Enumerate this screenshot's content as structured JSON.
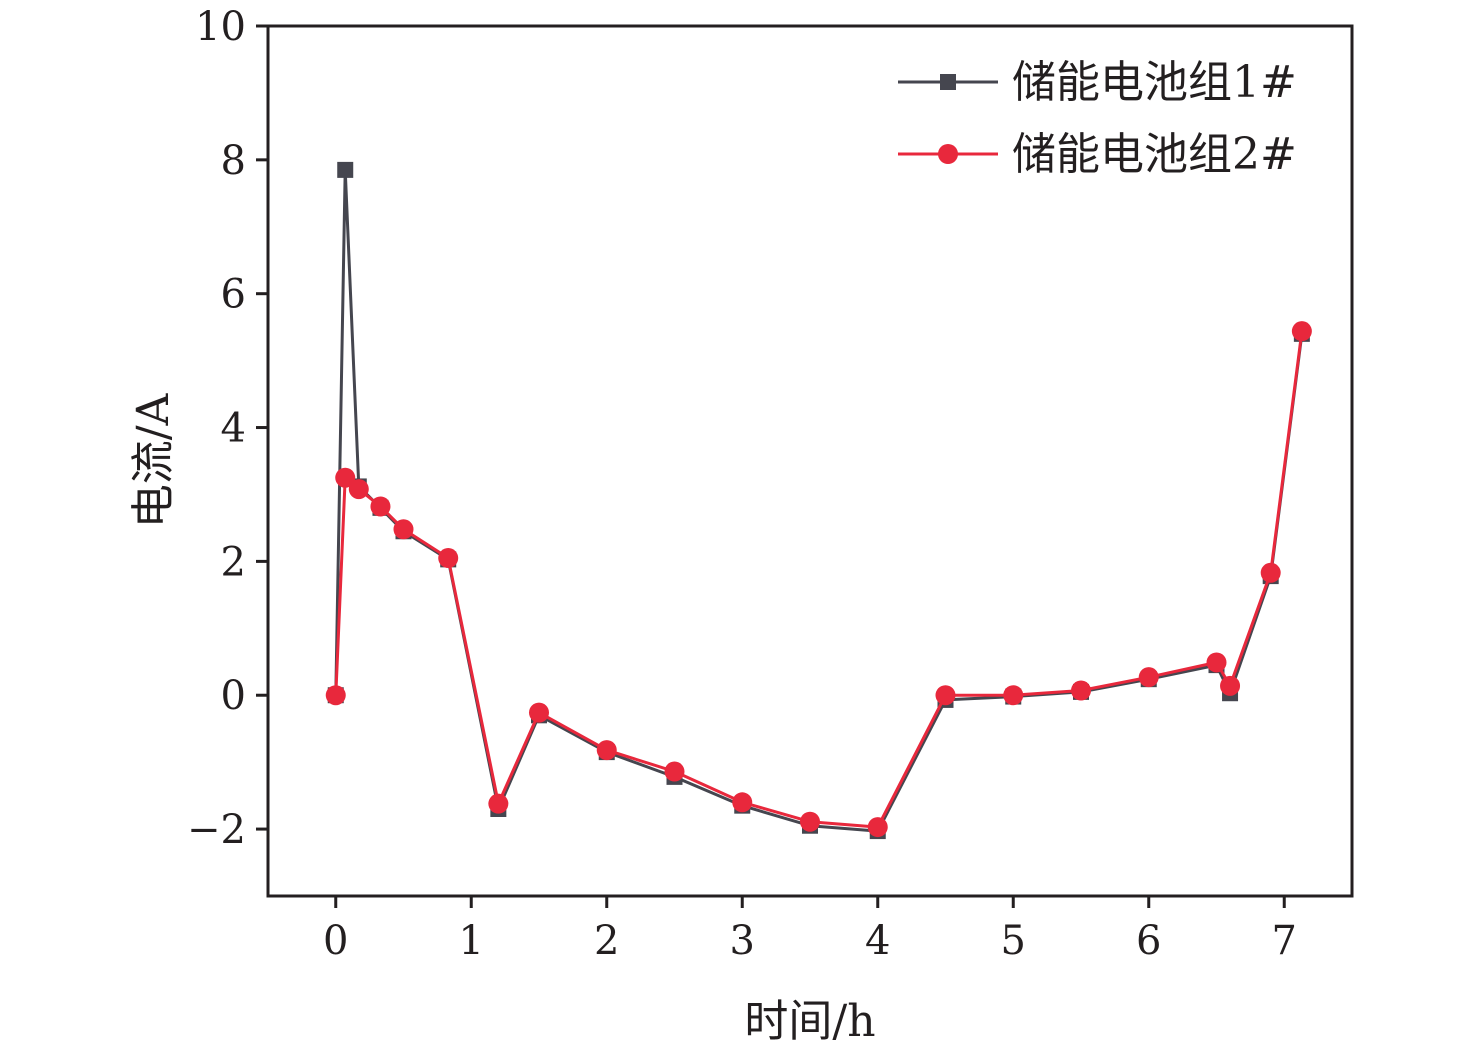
{
  "chart_data": {
    "type": "line",
    "title": "",
    "xlabel": "时间/h",
    "ylabel": "电流/A",
    "xlim": [
      -0.5,
      7.5
    ],
    "ylim": [
      -3,
      10
    ],
    "xticks": [
      0,
      1,
      2,
      3,
      4,
      5,
      6,
      7
    ],
    "yticks": [
      -2,
      0,
      2,
      4,
      6,
      8,
      10
    ],
    "xtick_labels": [
      "0",
      "1",
      "2",
      "3",
      "4",
      "5",
      "6",
      "7"
    ],
    "ytick_labels": [
      "−2",
      "0",
      "2",
      "4",
      "6",
      "8",
      "10"
    ],
    "grid": false,
    "legend_position": "top-right",
    "series": [
      {
        "name": "储能电池组1#",
        "color": "#45464f",
        "marker": "square",
        "x": [
          0,
          0.07,
          0.17,
          0.33,
          0.5,
          0.83,
          1.2,
          1.5,
          2.0,
          2.5,
          3.0,
          3.5,
          4.0,
          4.5,
          5.0,
          5.5,
          6.0,
          6.5,
          6.6,
          6.9,
          7.13
        ],
        "y": [
          0,
          7.85,
          3.12,
          2.8,
          2.45,
          2.03,
          -1.7,
          -0.3,
          -0.85,
          -1.22,
          -1.65,
          -1.95,
          -2.03,
          -0.07,
          -0.02,
          0.05,
          0.24,
          0.45,
          0.03,
          1.78,
          5.4
        ]
      },
      {
        "name": "储能电池组2#",
        "color": "#e8283c",
        "marker": "circle",
        "x": [
          0,
          0.07,
          0.17,
          0.33,
          0.5,
          0.83,
          1.2,
          1.5,
          2.0,
          2.5,
          3.0,
          3.5,
          4.0,
          4.5,
          5.0,
          5.5,
          6.0,
          6.5,
          6.6,
          6.9,
          7.13
        ],
        "y": [
          0,
          3.25,
          3.08,
          2.82,
          2.48,
          2.05,
          -1.62,
          -0.26,
          -0.82,
          -1.14,
          -1.6,
          -1.89,
          -1.97,
          0.0,
          0.0,
          0.07,
          0.27,
          0.49,
          0.14,
          1.83,
          5.44
        ]
      }
    ]
  }
}
